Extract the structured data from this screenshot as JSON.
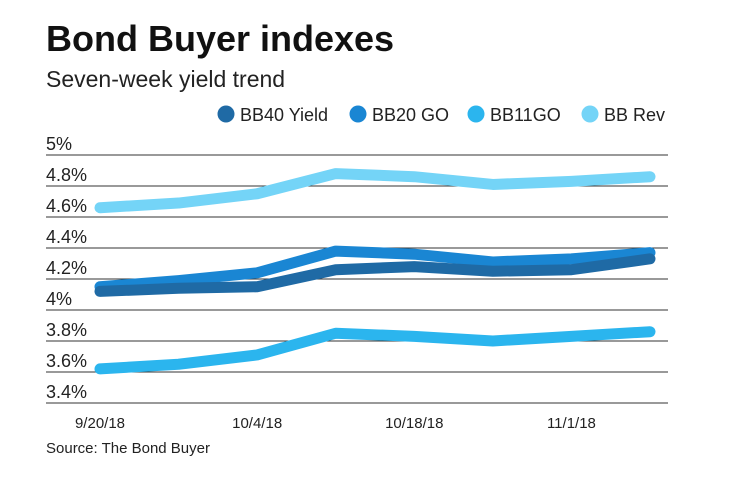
{
  "chart_data": {
    "type": "line",
    "title": "Bond Buyer indexes",
    "subtitle": "Seven-week yield trend",
    "source": "Source: The Bond Buyer",
    "x": [
      "9/20/18",
      "9/27/18",
      "10/4/18",
      "10/11/18",
      "10/18/18",
      "10/25/18",
      "11/1/18",
      "11/8/18"
    ],
    "xtick_labels": [
      "9/20/18",
      "10/4/18",
      "10/18/18",
      "11/1/18"
    ],
    "ytick_labels": [
      "3.4%",
      "3.6%",
      "3.8%",
      "4%",
      "4.2%",
      "4.4%",
      "4.6%",
      "4.8%",
      "5%"
    ],
    "ylim": [
      3.4,
      5.0
    ],
    "grid": true,
    "legend_position": "top-right",
    "series": [
      {
        "name": "BB40 Yield",
        "color": "#1f6aa5",
        "values": [
          4.12,
          4.14,
          4.15,
          4.26,
          4.28,
          4.25,
          4.26,
          4.33
        ]
      },
      {
        "name": "BB20 GO",
        "color": "#1a86d3",
        "values": [
          4.15,
          4.19,
          4.24,
          4.38,
          4.36,
          4.31,
          4.33,
          4.37
        ]
      },
      {
        "name": "BB11GO",
        "color": "#2bb5ee",
        "values": [
          3.62,
          3.65,
          3.71,
          3.85,
          3.83,
          3.8,
          3.83,
          3.86
        ]
      },
      {
        "name": "BB Rev",
        "color": "#74d4f7",
        "values": [
          4.66,
          4.69,
          4.75,
          4.88,
          4.86,
          4.81,
          4.83,
          4.86
        ]
      }
    ]
  }
}
